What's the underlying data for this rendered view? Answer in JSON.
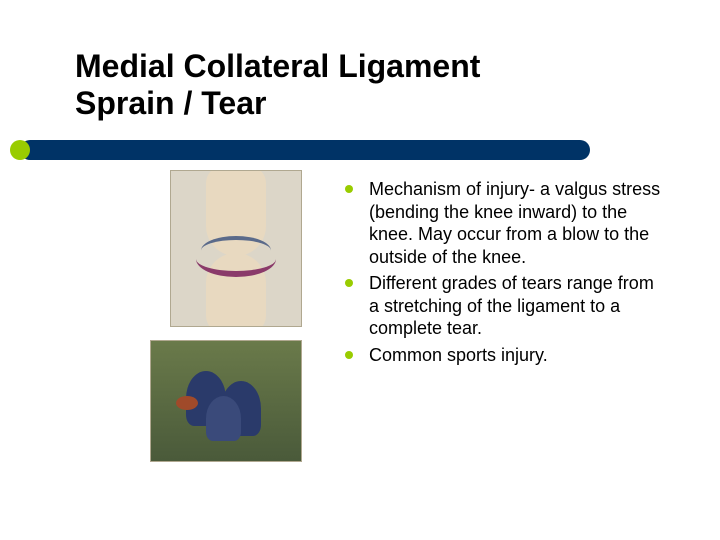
{
  "title": "Medial Collateral Ligament Sprain / Tear",
  "accent_color": "#99cc00",
  "bar_color": "#003366",
  "bullet_color": "#99cc00",
  "text_color": "#000000",
  "title_fontsize": 32,
  "body_fontsize": 18,
  "background_color": "#ffffff",
  "images": {
    "knee": {
      "name": "knee-anatomy-illustration"
    },
    "rugby": {
      "name": "rugby-tackle-photo"
    }
  },
  "bullets": [
    "Mechanism of injury- a valgus stress (bending the knee inward) to the knee. May occur from a blow to the outside of the knee.",
    "Different grades of tears range from a stretching of the ligament to a complete tear.",
    "Common sports injury."
  ]
}
